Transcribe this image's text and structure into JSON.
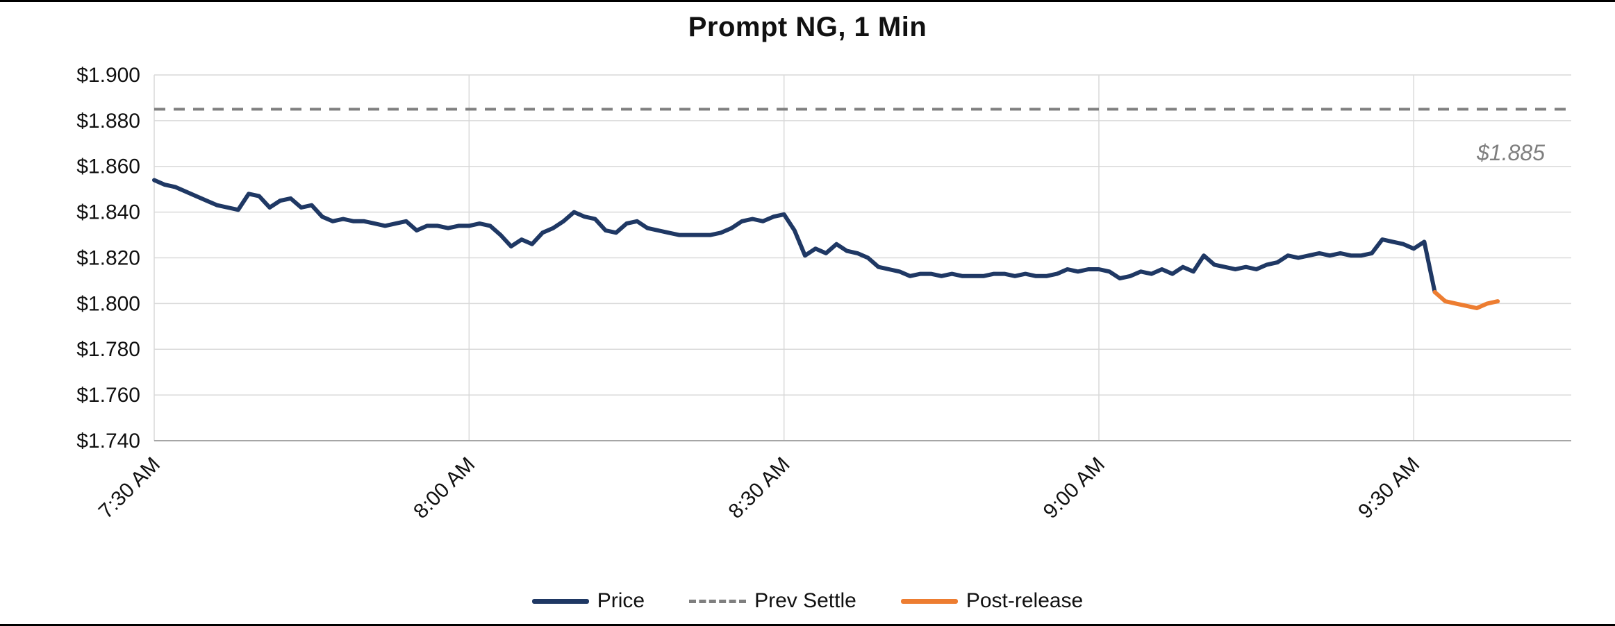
{
  "chart_data": {
    "type": "line",
    "title": "Prompt NG, 1 Min",
    "x_axis": {
      "unit": "minutes since 7:30 AM",
      "tick_labels": [
        "7:30 AM",
        "8:00 AM",
        "8:30 AM",
        "9:00 AM",
        "9:30 AM"
      ],
      "tick_minutes": [
        0,
        30,
        60,
        90,
        120
      ],
      "range_minutes": [
        0,
        135
      ],
      "label_rotation_deg": -45
    },
    "y_axis": {
      "min": 1.74,
      "max": 1.9,
      "step": 0.02,
      "tick_labels": [
        "$1.900",
        "$1.880",
        "$1.860",
        "$1.840",
        "$1.820",
        "$1.800",
        "$1.780",
        "$1.760",
        "$1.740"
      ],
      "tick_values": [
        1.9,
        1.88,
        1.86,
        1.84,
        1.82,
        1.8,
        1.78,
        1.76,
        1.74
      ],
      "grid": true
    },
    "prev_settle": {
      "value": 1.885,
      "color": "#7F7F7F"
    },
    "annotation": {
      "text": "$1.885",
      "color": "#7F7F7F"
    },
    "legend": [
      {
        "label": "Price",
        "color": "#1F3864",
        "style": "solid"
      },
      {
        "label": "Prev Settle",
        "color": "#7F7F7F",
        "style": "dashed"
      },
      {
        "label": "Post-release",
        "color": "#ED7D31",
        "style": "solid"
      }
    ],
    "series": [
      {
        "name": "Price",
        "color": "#1F3864",
        "style": "solid",
        "start_minute": 0,
        "step_minutes": 1,
        "values": [
          1.854,
          1.852,
          1.851,
          1.849,
          1.847,
          1.845,
          1.843,
          1.842,
          1.841,
          1.848,
          1.847,
          1.842,
          1.845,
          1.846,
          1.842,
          1.843,
          1.838,
          1.836,
          1.837,
          1.836,
          1.836,
          1.835,
          1.834,
          1.835,
          1.836,
          1.832,
          1.834,
          1.834,
          1.833,
          1.834,
          1.834,
          1.835,
          1.834,
          1.83,
          1.825,
          1.828,
          1.826,
          1.831,
          1.833,
          1.836,
          1.84,
          1.838,
          1.837,
          1.832,
          1.831,
          1.835,
          1.836,
          1.833,
          1.832,
          1.831,
          1.83,
          1.83,
          1.83,
          1.83,
          1.831,
          1.833,
          1.836,
          1.837,
          1.836,
          1.838,
          1.839,
          1.832,
          1.821,
          1.824,
          1.822,
          1.826,
          1.823,
          1.822,
          1.82,
          1.816,
          1.815,
          1.814,
          1.812,
          1.813,
          1.813,
          1.812,
          1.813,
          1.812,
          1.812,
          1.812,
          1.813,
          1.813,
          1.812,
          1.813,
          1.812,
          1.812,
          1.813,
          1.815,
          1.814,
          1.815,
          1.815,
          1.814,
          1.811,
          1.812,
          1.814,
          1.813,
          1.815,
          1.813,
          1.816,
          1.814,
          1.821,
          1.817,
          1.816,
          1.815,
          1.816,
          1.815,
          1.817,
          1.818,
          1.821,
          1.82,
          1.821,
          1.822,
          1.821,
          1.822,
          1.821,
          1.821,
          1.822,
          1.828,
          1.827,
          1.826,
          1.824,
          1.827,
          1.805
        ]
      },
      {
        "name": "Post-release",
        "color": "#ED7D31",
        "style": "solid",
        "start_minute": 122,
        "step_minutes": 1,
        "values": [
          1.805,
          1.801,
          1.8,
          1.799,
          1.798,
          1.8,
          1.801
        ]
      }
    ]
  }
}
